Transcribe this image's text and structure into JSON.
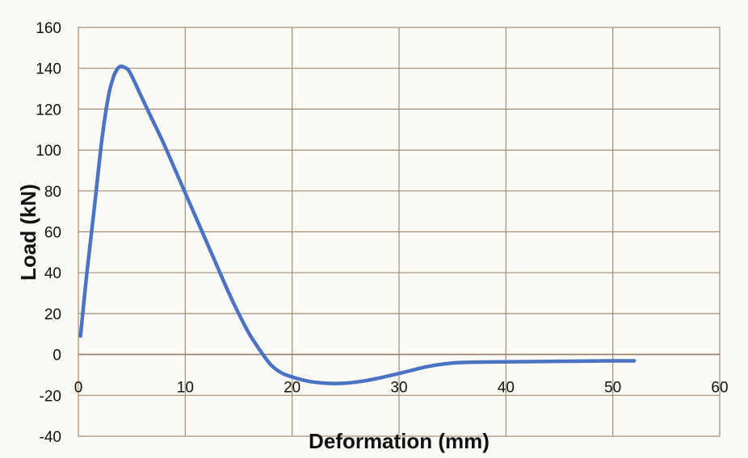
{
  "chart_data": {
    "type": "line",
    "title": "",
    "xlabel": "Deformation (mm)",
    "ylabel": "Load (kN)",
    "xlim": [
      0,
      60
    ],
    "ylim": [
      -40,
      160
    ],
    "x_ticks": [
      0,
      10,
      20,
      30,
      40,
      50,
      60
    ],
    "y_ticks": [
      -40,
      -20,
      0,
      20,
      40,
      60,
      80,
      100,
      120,
      140,
      160
    ],
    "grid": true,
    "legend": "none",
    "colors": {
      "series": "#4a73c4",
      "grid": "#a68a72",
      "background": "#fbfaf7"
    },
    "series": [
      {
        "x": [
          0.2,
          0.8,
          1.5,
          2.2,
          2.8,
          3.3,
          3.7,
          4.0,
          4.3,
          4.7,
          5.2,
          6.0,
          7.0,
          8.0,
          9.0,
          10.0,
          11.0,
          12.0,
          13.0,
          14.0,
          15.0,
          16.0,
          17.0,
          18.0,
          19.0,
          20.0,
          21.0,
          22.0,
          23.0,
          24.0,
          25.0,
          26.0,
          27.0,
          28.0,
          29.0,
          30.0,
          31.0,
          32.0,
          33.0,
          34.0,
          35.0,
          36.0,
          38.0,
          40.0,
          42.0,
          44.0,
          46.0,
          48.0,
          50.0,
          52.0
        ],
        "y": [
          9,
          40,
          72,
          105,
          126,
          136,
          140,
          141,
          140.5,
          139,
          134,
          125,
          114,
          103,
          91,
          79,
          67,
          55,
          43,
          31,
          20,
          10,
          2,
          -5,
          -9,
          -11,
          -12.5,
          -13.5,
          -14,
          -14.2,
          -14,
          -13.5,
          -12.7,
          -11.7,
          -10.5,
          -9.3,
          -8,
          -6.7,
          -5.6,
          -4.8,
          -4.2,
          -3.9,
          -3.7,
          -3.6,
          -3.5,
          -3.4,
          -3.3,
          -3.2,
          -3.1,
          -3.1
        ]
      }
    ]
  }
}
